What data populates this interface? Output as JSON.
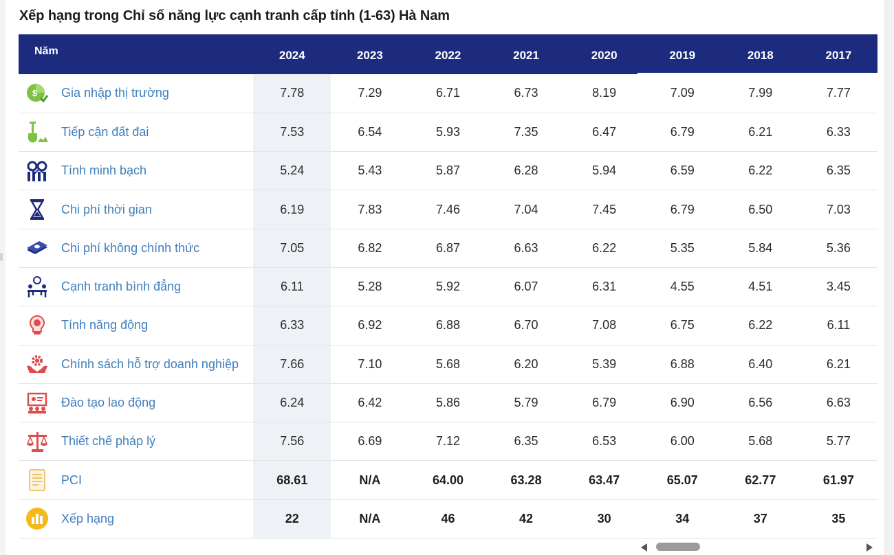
{
  "title": "Xếp hạng trong Chỉ số năng lực cạnh tranh cấp tỉnh (1-63) Hà Nam",
  "header": {
    "name_col": "Năm",
    "years": [
      "2024",
      "2023",
      "2022",
      "2021",
      "2020",
      "2019",
      "2018",
      "2017"
    ]
  },
  "colors": {
    "header_bg": "#1c2b7e",
    "label": "#3f7fbd",
    "highlight_col": "#eef2f7"
  },
  "rows": [
    {
      "label": "Gia nhập thị trường",
      "icon": "market-entry-icon",
      "values": [
        "7.78",
        "7.29",
        "6.71",
        "6.73",
        "8.19",
        "7.09",
        "7.99",
        "7.77"
      ]
    },
    {
      "label": "Tiếp cận đất đai",
      "icon": "land-access-icon",
      "values": [
        "7.53",
        "6.54",
        "5.93",
        "7.35",
        "6.47",
        "6.79",
        "6.21",
        "6.33"
      ]
    },
    {
      "label": "Tính minh bạch",
      "icon": "transparency-icon",
      "values": [
        "5.24",
        "5.43",
        "5.87",
        "6.28",
        "5.94",
        "6.59",
        "6.22",
        "6.35"
      ]
    },
    {
      "label": "Chi phí thời gian",
      "icon": "hourglass-icon",
      "values": [
        "6.19",
        "7.83",
        "7.46",
        "7.04",
        "7.45",
        "6.79",
        "6.50",
        "7.03"
      ]
    },
    {
      "label": "Chi phí không chính thức",
      "icon": "money-icon",
      "values": [
        "7.05",
        "6.82",
        "6.87",
        "6.63",
        "6.22",
        "5.35",
        "5.84",
        "5.36"
      ]
    },
    {
      "label": "Cạnh tranh bình đẳng",
      "icon": "equal-competition-icon",
      "values": [
        "6.11",
        "5.28",
        "5.92",
        "6.07",
        "6.31",
        "4.55",
        "4.51",
        "3.45"
      ]
    },
    {
      "label": "Tính năng động",
      "icon": "dynamism-icon",
      "values": [
        "6.33",
        "6.92",
        "6.88",
        "6.70",
        "7.08",
        "6.75",
        "6.22",
        "6.11"
      ]
    },
    {
      "label": "Chính sách hỗ trợ doanh nghiệp",
      "icon": "business-support-icon",
      "values": [
        "7.66",
        "7.10",
        "5.68",
        "6.20",
        "5.39",
        "6.88",
        "6.40",
        "6.21"
      ]
    },
    {
      "label": "Đào tạo lao động",
      "icon": "labor-training-icon",
      "values": [
        "6.24",
        "6.42",
        "5.86",
        "5.79",
        "6.79",
        "6.90",
        "6.56",
        "6.63"
      ]
    },
    {
      "label": "Thiết chế pháp lý",
      "icon": "legal-scales-icon",
      "values": [
        "7.56",
        "6.69",
        "7.12",
        "6.35",
        "6.53",
        "6.00",
        "5.68",
        "5.77"
      ]
    },
    {
      "label": "PCI",
      "icon": "pci-document-icon",
      "values": [
        "68.61",
        "N/A",
        "64.00",
        "63.28",
        "63.47",
        "65.07",
        "62.77",
        "61.97"
      ]
    },
    {
      "label": "Xếp hạng",
      "icon": "ranking-chart-icon",
      "values": [
        "22",
        "N/A",
        "46",
        "42",
        "30",
        "34",
        "37",
        "35"
      ]
    }
  ]
}
